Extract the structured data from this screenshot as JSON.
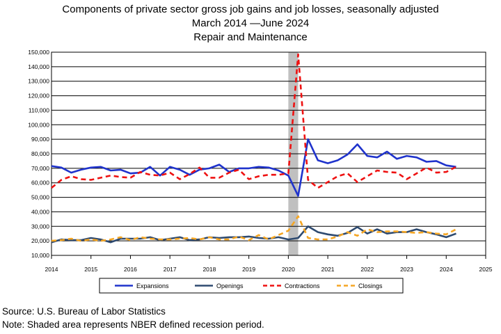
{
  "header": {
    "title": "Components of private sector gross job gains and job losses, seasonally adjusted",
    "subtitle": "March 2014 —June 2024",
    "industry": "Repair and Maintenance"
  },
  "footer": {
    "source": "Source: U.S. Bureau of Labor Statistics",
    "note": "Note: Shaded area represents NBER defined recession period."
  },
  "colors": {
    "expansions": "#1f33cc",
    "openings": "#2e4a70",
    "contractions": "#ee1111",
    "closings": "#f5a623",
    "recession": "#c0c0c0"
  },
  "chart_data": {
    "type": "line",
    "title": "",
    "xlabel": "",
    "ylabel": "",
    "xlim": [
      2014,
      2025
    ],
    "ylim": [
      10000,
      150000
    ],
    "x_ticks": [
      "2014",
      "2015",
      "2016",
      "2017",
      "2018",
      "2019",
      "2020",
      "2021",
      "2022",
      "2023",
      "2024",
      "2025"
    ],
    "y_ticks": [
      "10,000",
      "20,000",
      "30,000",
      "40,000",
      "50,000",
      "60,000",
      "70,000",
      "80,000",
      "90,000",
      "100,000",
      "110,000",
      "120,000",
      "130,000",
      "140,000",
      "150,000"
    ],
    "grid": "horizontal",
    "legend_position": "bottom",
    "recession": [
      2020.0,
      2020.25
    ],
    "x": [
      2014.0,
      2014.25,
      2014.5,
      2014.75,
      2015.0,
      2015.25,
      2015.5,
      2015.75,
      2016.0,
      2016.25,
      2016.5,
      2016.75,
      2017.0,
      2017.25,
      2017.5,
      2017.75,
      2018.0,
      2018.25,
      2018.5,
      2018.75,
      2019.0,
      2019.25,
      2019.5,
      2019.75,
      2020.0,
      2020.25,
      2020.5,
      2020.75,
      2021.0,
      2021.25,
      2021.5,
      2021.75,
      2022.0,
      2022.25,
      2022.5,
      2022.75,
      2023.0,
      2023.25,
      2023.5,
      2023.75,
      2024.0,
      2024.25
    ],
    "series": [
      {
        "name": "Expansions",
        "key": "expansions",
        "style": "solid",
        "values": [
          71500,
          70500,
          67000,
          69000,
          70500,
          71000,
          68500,
          69000,
          66500,
          67000,
          71000,
          65000,
          71000,
          69000,
          65500,
          69000,
          70000,
          72500,
          67500,
          70000,
          70000,
          71000,
          70500,
          68500,
          65000,
          51000,
          90000,
          75500,
          73500,
          75500,
          79500,
          86500,
          78500,
          77500,
          81500,
          76500,
          78500,
          77500,
          74500,
          75000,
          72000,
          71000
        ]
      },
      {
        "name": "Openings",
        "key": "openings",
        "style": "solid",
        "values": [
          19000,
          21000,
          20500,
          20500,
          22000,
          21000,
          19000,
          21500,
          21500,
          21500,
          22500,
          20500,
          21500,
          22500,
          20500,
          21000,
          22500,
          22000,
          22500,
          22500,
          23000,
          22000,
          21500,
          22500,
          21000,
          22000,
          30000,
          26000,
          24500,
          23500,
          25500,
          29500,
          25000,
          28000,
          25000,
          26000,
          26000,
          28000,
          26000,
          24500,
          22500,
          25000
        ]
      },
      {
        "name": "Contractions",
        "key": "contractions",
        "style": "dashed",
        "values": [
          56500,
          62000,
          64500,
          62500,
          62000,
          63500,
          65000,
          64000,
          63500,
          67500,
          65500,
          65000,
          67000,
          62500,
          66000,
          70500,
          63500,
          63500,
          67000,
          69000,
          62500,
          64500,
          65500,
          65500,
          66500,
          148500,
          62000,
          56500,
          60500,
          64500,
          66500,
          60500,
          64500,
          68500,
          67500,
          67000,
          62500,
          66500,
          70500,
          67000,
          67500,
          71000
        ]
      },
      {
        "name": "Closings",
        "key": "closings",
        "style": "dashed",
        "values": [
          20000,
          20500,
          21500,
          20000,
          21000,
          20000,
          21000,
          22500,
          20500,
          22500,
          21500,
          21000,
          21000,
          21500,
          22000,
          21000,
          22500,
          21000,
          21000,
          23000,
          20500,
          24000,
          21000,
          24000,
          27000,
          37000,
          22000,
          21000,
          21000,
          23000,
          26000,
          23500,
          28000,
          26000,
          26500,
          26500,
          26000,
          25500,
          26000,
          25000,
          24500,
          28000
        ]
      }
    ]
  }
}
